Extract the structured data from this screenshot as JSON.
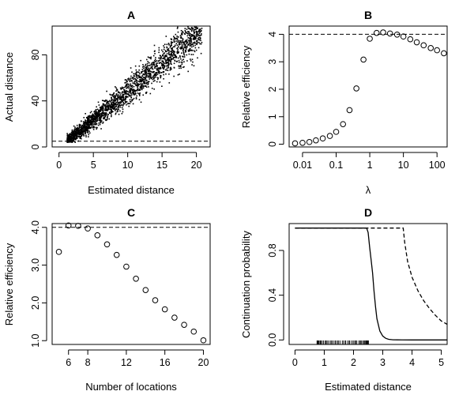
{
  "chart_data": [
    {
      "id": "A",
      "type": "scatter",
      "title": "A",
      "xlabel": "Estimated distance",
      "ylabel": "Actual distance",
      "xlim": [
        -1,
        22
      ],
      "ylim": [
        0,
        105
      ],
      "xticks": [
        0,
        5,
        10,
        15,
        20
      ],
      "yticks": [
        0,
        40,
        80
      ],
      "reference_line": {
        "y": 5,
        "style": "dashed"
      },
      "point_cloud": {
        "x_min": 1.2,
        "x_max": 20.8,
        "slope": 4.95,
        "intercept": -1.5,
        "approx_points": 2200
      }
    },
    {
      "id": "B",
      "type": "scatter",
      "title": "B",
      "xlabel": "λ",
      "ylabel": "Relative efficiency",
      "xscale": "log",
      "xlim": [
        0.004,
        200
      ],
      "ylim": [
        -0.1,
        4.3
      ],
      "xticks": [
        0.01,
        0.1,
        1,
        10,
        100
      ],
      "xticklabels": [
        "0.01",
        "0.1",
        "1",
        "10",
        "100"
      ],
      "yticks": [
        0,
        1,
        2,
        3,
        4
      ],
      "reference_line": {
        "y": 4,
        "style": "dashed"
      },
      "x": [
        0.006,
        0.01,
        0.016,
        0.025,
        0.04,
        0.065,
        0.1,
        0.16,
        0.25,
        0.4,
        0.65,
        1,
        1.6,
        2.5,
        4,
        6.5,
        10,
        16,
        25,
        40,
        65,
        100,
        160
      ],
      "y": [
        0.03,
        0.05,
        0.08,
        0.14,
        0.21,
        0.3,
        0.45,
        0.73,
        1.24,
        2.03,
        3.08,
        3.84,
        4.05,
        4.07,
        4.03,
        3.99,
        3.92,
        3.82,
        3.71,
        3.6,
        3.5,
        3.42,
        3.31
      ]
    },
    {
      "id": "C",
      "type": "scatter",
      "title": "C",
      "xlabel": "Number of locations",
      "ylabel": "Relative efficiency",
      "xlim": [
        4.3,
        20.7
      ],
      "ylim": [
        0.9,
        4.1
      ],
      "xticks": [
        6,
        8,
        12,
        16,
        20
      ],
      "yticks": [
        1.0,
        2.0,
        3.0,
        4.0
      ],
      "yticklabels": [
        "1.0",
        "2.0",
        "3.0",
        "4.0"
      ],
      "reference_line": {
        "y": 4,
        "style": "dashed"
      },
      "x": [
        5,
        6,
        7,
        8,
        9,
        10,
        11,
        12,
        13,
        14,
        15,
        16,
        17,
        18,
        19,
        20
      ],
      "y": [
        3.35,
        4.05,
        4.04,
        3.97,
        3.79,
        3.55,
        3.27,
        2.96,
        2.64,
        2.34,
        2.07,
        1.83,
        1.61,
        1.42,
        1.24,
        1.01
      ]
    },
    {
      "id": "D",
      "type": "line",
      "title": "D",
      "xlabel": "Estimated distance",
      "ylabel": "Continuation probability",
      "xlim": [
        -0.2,
        5.2
      ],
      "ylim": [
        -0.04,
        1.04
      ],
      "xticks": [
        0,
        1,
        2,
        3,
        4,
        5
      ],
      "yticks": [
        0.0,
        0.4,
        0.8
      ],
      "yticklabels": [
        "0.0",
        "0.4",
        "0.8"
      ],
      "series": [
        {
          "name": "solid",
          "style": "solid",
          "x": [
            0,
            2.45,
            2.5,
            2.55,
            2.6,
            2.65,
            2.7,
            2.75,
            2.8,
            2.9,
            3.0,
            3.1,
            3.2,
            3.35,
            3.5,
            4.0,
            5.2
          ],
          "y": [
            1.0,
            1.0,
            0.96,
            0.83,
            0.72,
            0.6,
            0.44,
            0.3,
            0.19,
            0.08,
            0.035,
            0.015,
            0.006,
            0.002,
            0.001,
            0,
            0
          ]
        },
        {
          "name": "dashed",
          "style": "dashed",
          "x": [
            0,
            3.7,
            3.75,
            3.85,
            4.0,
            4.2,
            4.4,
            4.6,
            4.8,
            5.0,
            5.2
          ],
          "y": [
            1.0,
            1.0,
            0.87,
            0.7,
            0.56,
            0.44,
            0.35,
            0.28,
            0.22,
            0.17,
            0.14
          ]
        }
      ],
      "rug": {
        "x_min": 0.75,
        "x_max": 2.5,
        "count": 60
      }
    }
  ]
}
